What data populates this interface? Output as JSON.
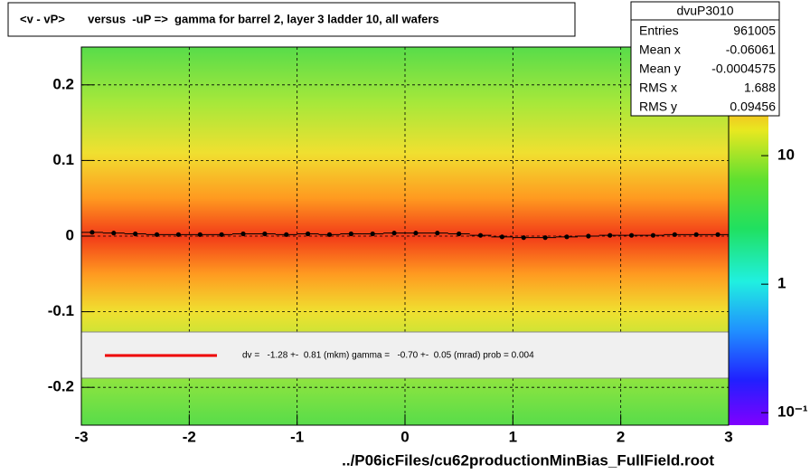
{
  "chart_data": {
    "type": "profile2d",
    "title": "<v - vP>       versus  -uP =>  gamma for barrel 2, layer 3 ladder 10, all wafers",
    "x_label": "../P06icFiles/cu62productionMinBias_FullField.root",
    "xlim": [
      -3,
      3
    ],
    "ylim": [
      -0.25,
      0.25
    ],
    "xticks": [
      -3,
      -2,
      -1,
      0,
      1,
      2,
      3
    ],
    "yticks": [
      -0.2,
      -0.1,
      0,
      0.1,
      0.2
    ],
    "grid": true,
    "zlog": true,
    "zlim": [
      0.08,
      70
    ],
    "zticks": [
      {
        "value": 10,
        "label": "10"
      },
      {
        "value": 1,
        "label": "1"
      },
      {
        "value": 0.1,
        "label": "10⁻¹"
      }
    ],
    "series": [
      {
        "name": "profile",
        "color": "#000000",
        "x": [
          -2.9,
          -2.7,
          -2.5,
          -2.3,
          -2.1,
          -1.9,
          -1.7,
          -1.5,
          -1.3,
          -1.1,
          -0.9,
          -0.7,
          -0.5,
          -0.3,
          -0.1,
          0.1,
          0.3,
          0.5,
          0.7,
          0.9,
          1.1,
          1.3,
          1.5,
          1.7,
          1.9,
          2.1,
          2.3,
          2.5,
          2.7,
          2.9
        ],
        "values": [
          0.005,
          0.004,
          0.003,
          0.002,
          0.002,
          0.002,
          0.002,
          0.003,
          0.003,
          0.002,
          0.003,
          0.002,
          0.003,
          0.003,
          0.004,
          0.004,
          0.004,
          0.003,
          0.001,
          -0.001,
          -0.002,
          -0.002,
          -0.001,
          0.0,
          0.001,
          0.001,
          0.001,
          0.002,
          0.002,
          0.002
        ]
      }
    ],
    "fit_text": "dv =   -1.28 +-  0.81 (mkm) gamma =   -0.70 +-  0.05 (mrad) prob = 0.004",
    "fit_color": "#ee0000",
    "stats": {
      "title": "dvuP3010",
      "rows": [
        [
          "Entries",
          "961005"
        ],
        [
          "Mean x",
          "-0.06061"
        ],
        [
          "Mean y",
          "-0.0004575"
        ],
        [
          "RMS x",
          "1.688"
        ],
        [
          "RMS y",
          "0.09456"
        ]
      ]
    }
  }
}
